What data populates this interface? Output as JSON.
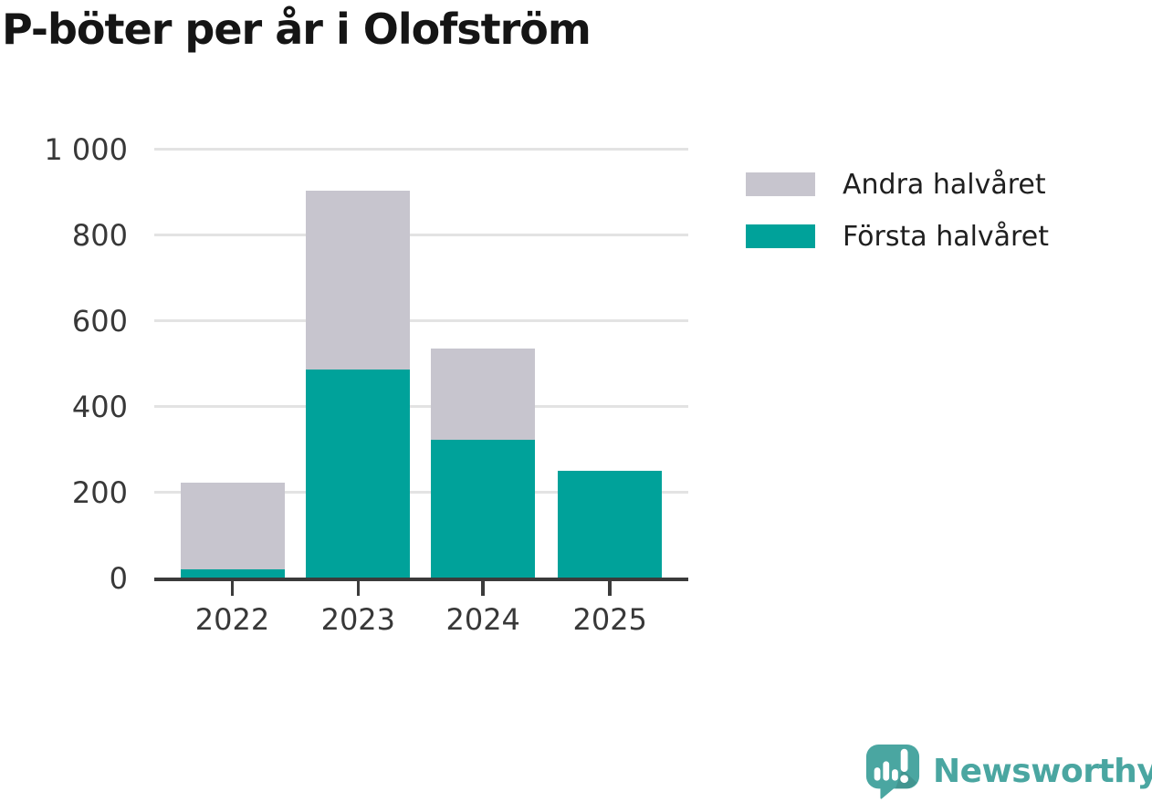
{
  "chart_data": {
    "type": "bar",
    "stacked": true,
    "title": "P-böter per år i Olofström",
    "categories": [
      "2022",
      "2023",
      "2024",
      "2025"
    ],
    "series": [
      {
        "name": "Första halvåret",
        "color": "#00a29a",
        "values": [
          20,
          486,
          322,
          250
        ]
      },
      {
        "name": "Andra halvåret",
        "color": "#c7c5ce",
        "values": [
          203,
          417,
          213,
          0
        ]
      }
    ],
    "totals": [
      223,
      903,
      535,
      250
    ],
    "xlabel": "",
    "ylabel": "",
    "ylim": [
      0,
      1000
    ],
    "yticks": [
      0,
      200,
      400,
      600,
      800,
      1000
    ],
    "ytick_labels": [
      "0",
      "200",
      "400",
      "600",
      "800",
      "1 000"
    ],
    "grid": "horizontal",
    "legend_position": "right"
  },
  "legend": {
    "items": [
      {
        "label": "Andra halvåret",
        "color": "#c7c5ce"
      },
      {
        "label": "Första halvåret",
        "color": "#00a29a"
      }
    ]
  },
  "branding": {
    "wordmark": "Newsworthy",
    "color": "#4aa6a1",
    "icon": "newsworthy-speech-bubble-bar-chart-icon"
  },
  "colors": {
    "first_half_teal": "#00a29a",
    "second_half_gray": "#c7c5ce",
    "axis": "#3b3b3b",
    "gridline": "#e3e3e3",
    "tick_text": "#383838",
    "title_text": "#151515"
  }
}
